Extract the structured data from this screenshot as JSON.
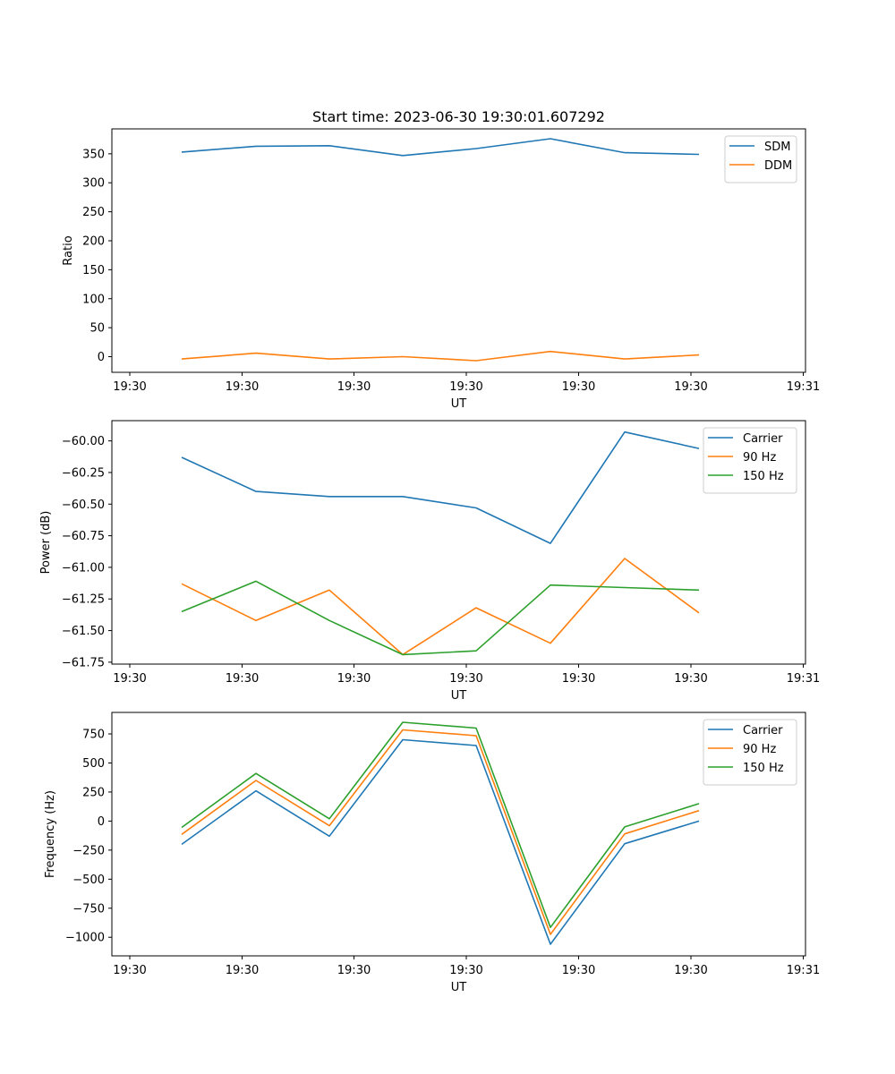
{
  "title": "Start time: 2023-06-30 19:30:01.607292",
  "x_tick_labels": [
    "19:30",
    "19:30",
    "19:30",
    "19:30",
    "19:30",
    "19:30",
    "19:30"
  ],
  "chart_data": [
    {
      "type": "line",
      "title": "Start time: 2023-06-30 19:30:01.607292",
      "xlabel": "UT",
      "ylabel": "Ratio",
      "x_ticks": [
        "19:30",
        "19:30",
        "19:30",
        "19:30",
        "19:30",
        "19:30",
        "19:31"
      ],
      "y_ticks": [
        "0",
        "50",
        "100",
        "150",
        "200",
        "250",
        "300",
        "350"
      ],
      "ylim": [
        -27,
        393
      ],
      "legend_position": "top-right",
      "grid": false,
      "series": [
        {
          "name": "SDM",
          "color": "#1f77b4",
          "values": [
            353,
            363,
            364,
            347,
            359,
            376,
            352,
            349
          ]
        },
        {
          "name": "DDM",
          "color": "#ff7f0e",
          "values": [
            -4,
            6,
            -4,
            0,
            -7,
            9,
            -4,
            3
          ]
        }
      ]
    },
    {
      "type": "line",
      "title": "",
      "xlabel": "UT",
      "ylabel": "Power (dB)",
      "x_ticks": [
        "19:30",
        "19:30",
        "19:30",
        "19:30",
        "19:30",
        "19:30",
        "19:31"
      ],
      "y_ticks": [
        "−60.00",
        "−60.25",
        "−60.50",
        "−60.75",
        "−61.00",
        "−61.25",
        "−61.50",
        "−61.75"
      ],
      "ylim": [
        -61.765,
        -59.84
      ],
      "legend_position": "top-right",
      "grid": false,
      "series": [
        {
          "name": "Carrier",
          "color": "#1f77b4",
          "values": [
            -60.13,
            -60.4,
            -60.44,
            -60.44,
            -60.53,
            -60.81,
            -59.93,
            -60.06
          ]
        },
        {
          "name": "90 Hz",
          "color": "#ff7f0e",
          "values": [
            -61.13,
            -61.42,
            -61.18,
            -61.69,
            -61.32,
            -61.6,
            -60.93,
            -61.36
          ]
        },
        {
          "name": "150 Hz",
          "color": "#2ca02c",
          "values": [
            -61.35,
            -61.11,
            -61.42,
            -61.69,
            -61.66,
            -61.14,
            -61.16,
            -61.18
          ]
        }
      ]
    },
    {
      "type": "line",
      "title": "",
      "xlabel": "UT",
      "ylabel": "Frequency (Hz)",
      "x_ticks": [
        "19:30",
        "19:30",
        "19:30",
        "19:30",
        "19:30",
        "19:30",
        "19:31"
      ],
      "y_ticks": [
        "−1000",
        "−750",
        "−500",
        "−250",
        "0",
        "250",
        "500",
        "750"
      ],
      "ylim": [
        -1160,
        935
      ],
      "legend_position": "top-right",
      "grid": false,
      "series": [
        {
          "name": "Carrier",
          "color": "#1f77b4",
          "values": [
            -200,
            260,
            -130,
            700,
            650,
            -1060,
            -195,
            0
          ]
        },
        {
          "name": "90 Hz",
          "color": "#ff7f0e",
          "values": [
            -115,
            350,
            -40,
            785,
            735,
            -975,
            -110,
            90
          ]
        },
        {
          "name": "150 Hz",
          "color": "#2ca02c",
          "values": [
            -55,
            410,
            20,
            850,
            800,
            -915,
            -50,
            150
          ]
        }
      ]
    }
  ]
}
